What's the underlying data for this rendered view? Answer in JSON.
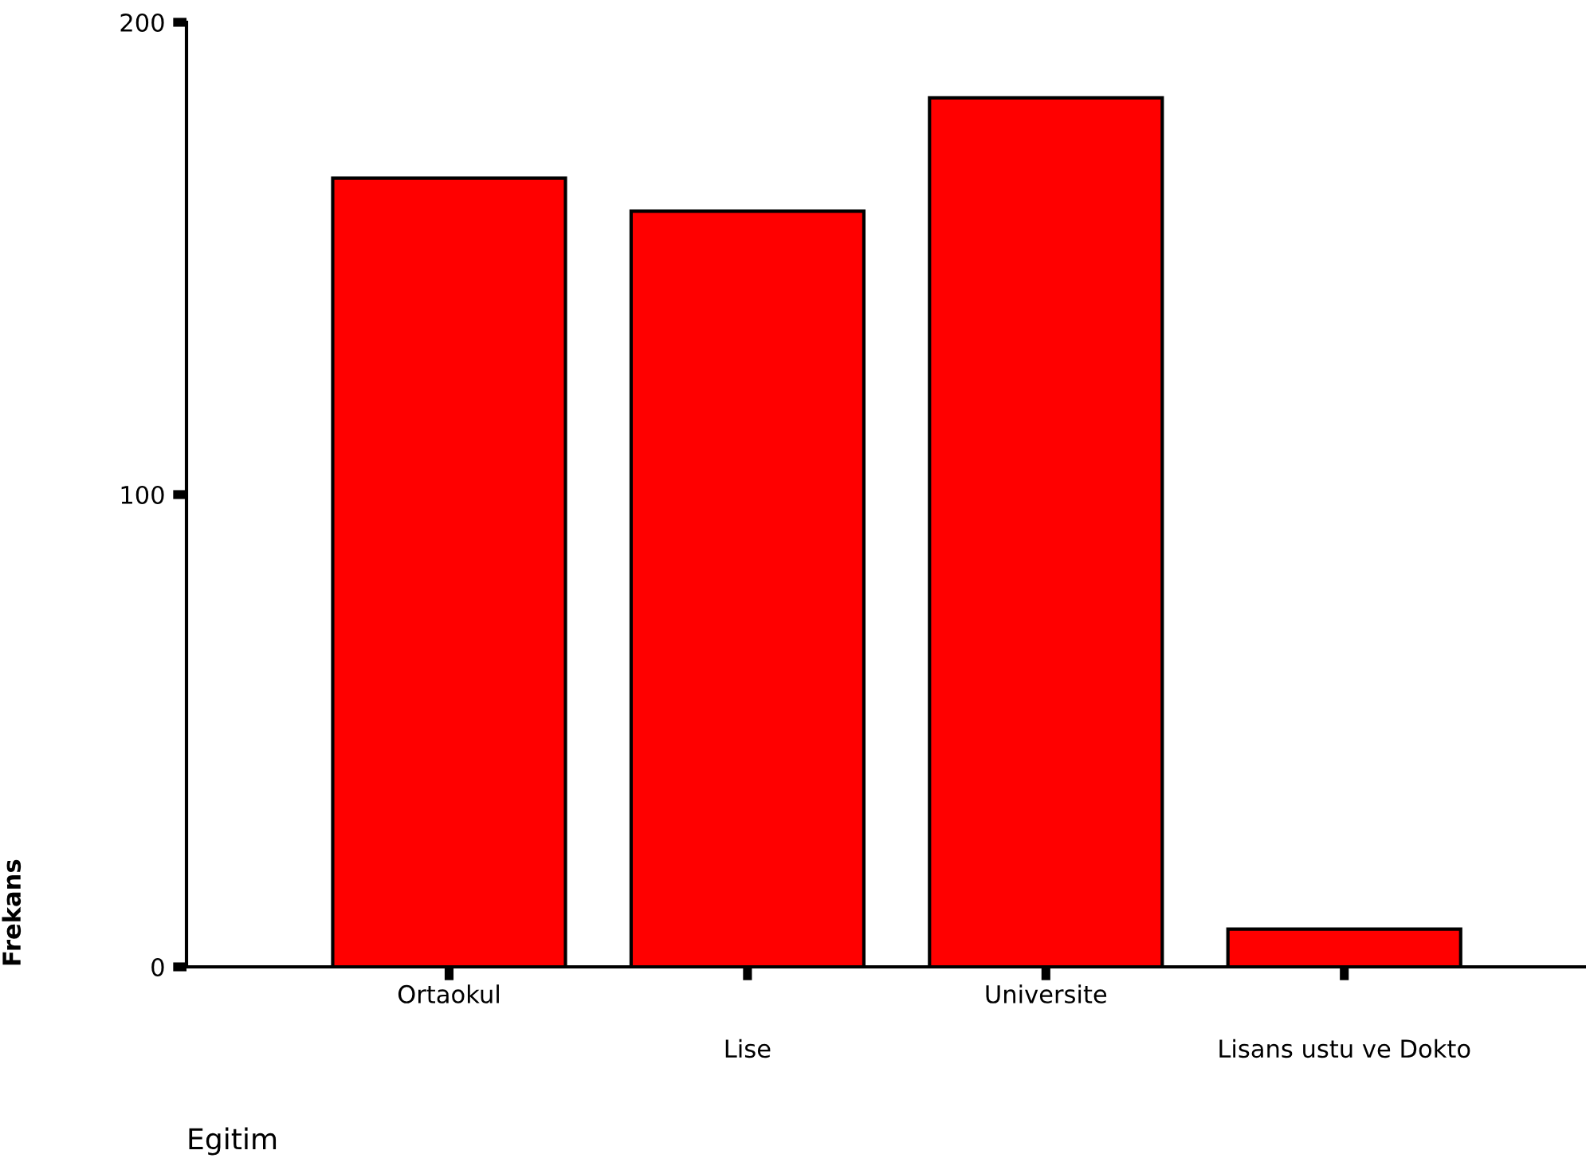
{
  "chart_data": {
    "type": "bar",
    "xlabel": "Egitim",
    "ylabel": "Frekans",
    "categories": [
      "Ortaokul",
      "Lise",
      "Universite",
      "Lisans ustu ve Dokto"
    ],
    "values": [
      167,
      160,
      184,
      8
    ],
    "color": "#ff0000",
    "ylim": [
      0,
      200
    ],
    "yticks": [
      0,
      100,
      200
    ],
    "grid": false
  }
}
